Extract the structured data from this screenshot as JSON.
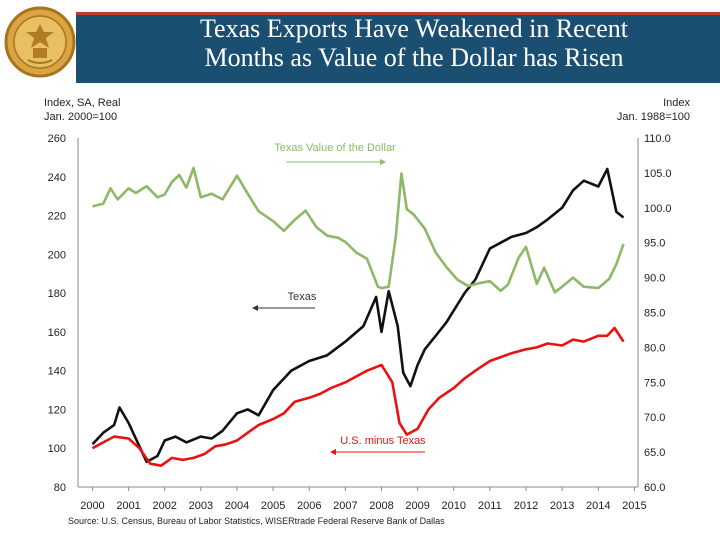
{
  "header": {
    "title_line1": "Texas Exports Have Weakened in Recent",
    "title_line2": "Months as Value of the Dollar has Risen",
    "logo_icon": "federal-reserve-seal-icon"
  },
  "chart_data": {
    "type": "line",
    "left_axis": {
      "label_line1": "Index, SA, Real",
      "label_line2": "Jan. 2000=100",
      "ylim": [
        80,
        260
      ],
      "ticks": [
        "260",
        "240",
        "220",
        "200",
        "180",
        "160",
        "140",
        "120",
        "100",
        "80"
      ]
    },
    "right_axis": {
      "label_line1": "Index",
      "label_line2": "Jan. 1988=100",
      "ylim": [
        60,
        110
      ],
      "ticks": [
        "110.0",
        "105.0",
        "100.0",
        "95.0",
        "90.0",
        "85.0",
        "80.0",
        "75.0",
        "70.0",
        "65.0",
        "60.0"
      ]
    },
    "x_axis": {
      "xlim": [
        1999.6,
        2015.1
      ],
      "ticks": [
        "2000",
        "2001",
        "2002",
        "2003",
        "2004",
        "2005",
        "2006",
        "2007",
        "2008",
        "2009",
        "2010",
        "2011",
        "2012",
        "2013",
        "2014",
        "2015"
      ]
    },
    "grid": false,
    "series": [
      {
        "name": "Texas",
        "axis": "left",
        "color": "#111111",
        "x": [
          2000.0,
          2000.3,
          2000.6,
          2000.75,
          2001.0,
          2001.2,
          2001.5,
          2001.8,
          2002.0,
          2002.3,
          2002.6,
          2003.0,
          2003.3,
          2003.6,
          2004.0,
          2004.3,
          2004.6,
          2005.0,
          2005.5,
          2006.0,
          2006.5,
          2007.0,
          2007.5,
          2007.85,
          2008.0,
          2008.2,
          2008.45,
          2008.6,
          2008.8,
          2009.0,
          2009.2,
          2009.5,
          2009.8,
          2010.0,
          2010.3,
          2010.6,
          2011.0,
          2011.3,
          2011.6,
          2012.0,
          2012.3,
          2012.6,
          2013.0,
          2013.3,
          2013.6,
          2014.0,
          2014.25,
          2014.5,
          2014.7
        ],
        "values": [
          102,
          108,
          112,
          121,
          113,
          105,
          93,
          96,
          104,
          106,
          103,
          106,
          105,
          109,
          118,
          120,
          117,
          130,
          140,
          145,
          148,
          155,
          163,
          178,
          160,
          181,
          163,
          139,
          132,
          143,
          151,
          158,
          165,
          171,
          180,
          187,
          203,
          206,
          209,
          211,
          214,
          218,
          224,
          233,
          238,
          235,
          244,
          222,
          219
        ]
      },
      {
        "name": "Texas Value of the Dollar",
        "axis": "right",
        "color": "#8db866",
        "x": [
          2000.0,
          2000.3,
          2000.5,
          2000.7,
          2001.0,
          2001.2,
          2001.5,
          2001.8,
          2002.0,
          2002.2,
          2002.4,
          2002.6,
          2002.8,
          2003.0,
          2003.3,
          2003.6,
          2004.0,
          2004.3,
          2004.6,
          2005.0,
          2005.3,
          2005.6,
          2005.9,
          2006.2,
          2006.5,
          2006.8,
          2007.0,
          2007.3,
          2007.6,
          2007.9,
          2008.0,
          2008.2,
          2008.4,
          2008.55,
          2008.7,
          2008.9,
          2009.2,
          2009.5,
          2009.8,
          2010.1,
          2010.4,
          2010.7,
          2011.0,
          2011.3,
          2011.5,
          2011.8,
          2012.0,
          2012.3,
          2012.5,
          2012.8,
          2013.0,
          2013.3,
          2013.6,
          2014.0,
          2014.3,
          2014.5,
          2014.7
        ],
        "values": [
          100.2,
          100.6,
          102.8,
          101.2,
          102.8,
          102.1,
          103.1,
          101.5,
          101.9,
          103.7,
          104.7,
          102.9,
          105.7,
          101.5,
          102.0,
          101.2,
          104.6,
          102.0,
          99.5,
          98.1,
          96.7,
          98.3,
          99.6,
          97.2,
          96.0,
          95.7,
          95.1,
          93.6,
          92.7,
          88.7,
          88.5,
          88.7,
          96.0,
          104.9,
          99.8,
          99.0,
          97.0,
          93.6,
          91.5,
          89.7,
          88.8,
          89.2,
          89.5,
          88.1,
          89.0,
          92.9,
          94.4,
          89.1,
          91.4,
          87.9,
          88.7,
          90.0,
          88.7,
          88.5,
          89.8,
          91.9,
          94.8
        ]
      },
      {
        "name": "U.S. minus Texas",
        "axis": "left",
        "color": "#e8130f",
        "x": [
          2000.0,
          2000.3,
          2000.6,
          2001.0,
          2001.3,
          2001.6,
          2001.9,
          2002.2,
          2002.5,
          2002.8,
          2003.1,
          2003.4,
          2003.7,
          2004.0,
          2004.3,
          2004.6,
          2005.0,
          2005.3,
          2005.6,
          2006.0,
          2006.3,
          2006.6,
          2007.0,
          2007.3,
          2007.6,
          2008.0,
          2008.3,
          2008.5,
          2008.7,
          2009.0,
          2009.3,
          2009.6,
          2010.0,
          2010.3,
          2010.6,
          2011.0,
          2011.3,
          2011.6,
          2012.0,
          2012.3,
          2012.6,
          2013.0,
          2013.3,
          2013.6,
          2014.0,
          2014.25,
          2014.45,
          2014.7
        ],
        "values": [
          100,
          103,
          106,
          105,
          100,
          92,
          91,
          95,
          94,
          95,
          97,
          101,
          102,
          104,
          108,
          112,
          115,
          118,
          124,
          126,
          128,
          131,
          134,
          137,
          140,
          143,
          134,
          113,
          107,
          110,
          120,
          126,
          131,
          136,
          140,
          145,
          147,
          149,
          151,
          152,
          154,
          153,
          156,
          155,
          158,
          158,
          162,
          155
        ]
      }
    ],
    "annotations": {
      "dollar": "Texas Value of the Dollar",
      "texas": "Texas",
      "us": "U.S. minus Texas"
    },
    "source": "Source: U.S. Census, Bureau of Labor Statistics, WISERtrade Federal Reserve Bank of Dallas"
  }
}
